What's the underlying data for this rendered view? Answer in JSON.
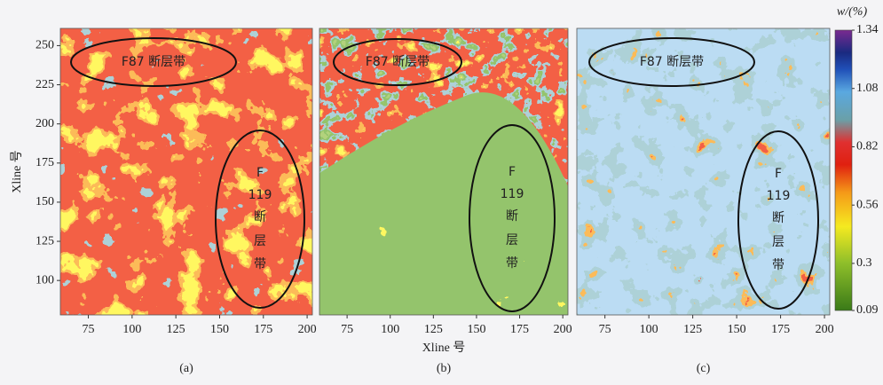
{
  "chart_data": [
    {
      "type": "heatmap",
      "panel_label": "(a)",
      "ylabel": "Xline 号",
      "xlim": [
        59,
        203
      ],
      "ylim": [
        78,
        261
      ],
      "xticks": [
        75,
        100,
        125,
        150,
        175,
        200
      ],
      "yticks": [
        100,
        125,
        150,
        175,
        200,
        225,
        250
      ],
      "annotations": [
        "F87 断层带",
        "F",
        "119",
        "断",
        "层",
        "带"
      ]
    },
    {
      "type": "heatmap",
      "panel_label": "(b)",
      "xlabel": "Xline 号",
      "xlim": [
        59,
        203
      ],
      "ylim": [
        78,
        261
      ],
      "xticks": [
        75,
        100,
        125,
        150,
        175,
        200
      ],
      "annotations": [
        "F87 断层带",
        "F",
        "119",
        "断",
        "层",
        "带"
      ]
    },
    {
      "type": "heatmap",
      "panel_label": "(c)",
      "xlim": [
        59,
        203
      ],
      "ylim": [
        78,
        261
      ],
      "xticks": [
        75,
        100,
        125,
        150,
        175,
        200
      ],
      "annotations": [
        "F87 断层带",
        "F",
        "119",
        "断",
        "层",
        "带"
      ],
      "colorbar": {
        "title": "w/(%)",
        "lim": [
          0.09,
          1.34
        ],
        "ticks": [
          1.34,
          1.08,
          0.82,
          0.56,
          0.3,
          0.09
        ]
      }
    }
  ]
}
